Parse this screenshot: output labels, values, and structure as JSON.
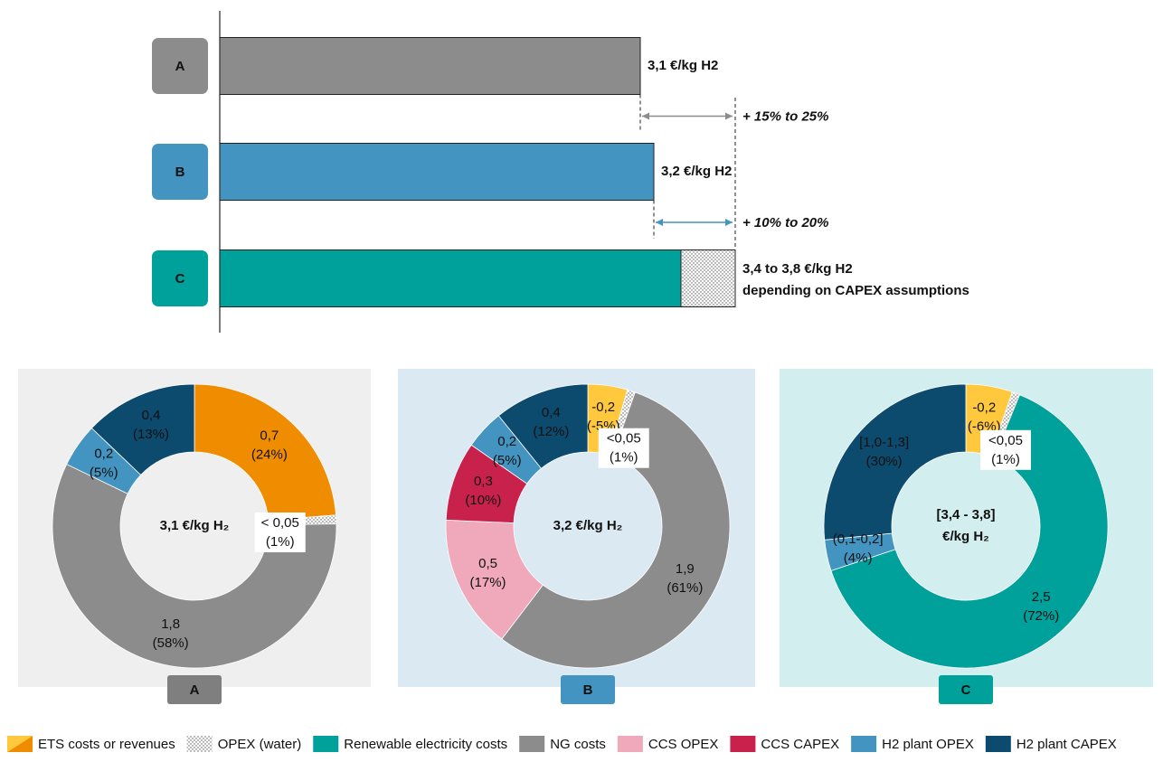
{
  "chart_data": [
    {
      "type": "bar",
      "categories": [
        "A",
        "B",
        "C"
      ],
      "values": [
        3.1,
        3.2,
        3.4
      ],
      "upper": [
        null,
        null,
        3.8
      ],
      "value_labels": [
        "3,1 €/kg H2",
        "3,2 €/kg H2",
        "3,4 to 3,8 €/kg H2"
      ],
      "value_notes": [
        null,
        null,
        "depending on CAPEX assumptions"
      ],
      "colors": [
        "#8c8c8c",
        "#4394c0",
        "#00a19a"
      ],
      "xlim": [
        0,
        4
      ],
      "annotations": [
        {
          "text": "+ 15% to 25%",
          "color": "#8c8c8c"
        },
        {
          "text": "+ 10% to 20%",
          "color": "#4394c0"
        }
      ]
    },
    {
      "type": "donut",
      "label": "A",
      "center_label": [
        "3,1 €/kg H₂"
      ],
      "background": "#efefef",
      "badge_color": "#7f7f7f",
      "values": [
        24,
        1,
        58,
        5,
        13
      ],
      "amounts": [
        "0,7",
        "< 0,05",
        "1,8",
        "0,2",
        "0,4"
      ],
      "value_labels": [
        "(24%)",
        "(1%)",
        "(58%)",
        "(5%)",
        "(13%)"
      ],
      "colors": [
        "#f08c00",
        "dots",
        "#8c8c8c",
        "#4394c0",
        "#0c4a6e"
      ]
    },
    {
      "type": "donut",
      "label": "B",
      "center_label": [
        "3,2 €/kg H₂"
      ],
      "background": "#dbe9f3",
      "badge_color": "#4394c0",
      "values": [
        -5,
        1,
        61,
        17,
        10,
        5,
        12
      ],
      "amounts": [
        "-0,2",
        "<0,05",
        "1,9",
        "0,5",
        "0,3",
        "0,2",
        "0,4"
      ],
      "value_labels": [
        "(-5%)",
        "(1%)",
        "(61%)",
        "(17%)",
        "(10%)",
        "(5%)",
        "(12%)"
      ],
      "colors": [
        "#ffc83d",
        "dots",
        "#8c8c8c",
        "#f0a8bb",
        "#c8224c",
        "#4394c0",
        "#0c4a6e"
      ]
    },
    {
      "type": "donut",
      "label": "C",
      "center_label": [
        "[3,4 - 3,8]",
        "€/kg H₂"
      ],
      "background": "#d3eeee",
      "badge_color": "#00a19a",
      "values": [
        -6,
        1,
        72,
        4,
        30
      ],
      "amounts": [
        "-0,2",
        "<0,05",
        "2,5",
        "(0,1-0,2]",
        "[1,0-1,3]"
      ],
      "value_labels": [
        "(-6%)",
        "(1%)",
        "(72%)",
        "(4%)",
        "(30%)"
      ],
      "colors": [
        "#ffc83d",
        "dots",
        "#00a19a",
        "#4394c0",
        "#0c4a6e"
      ]
    }
  ],
  "legend": [
    {
      "name": "ETS costs or revenues",
      "color": "#f08c00",
      "color2": "#ffc83d"
    },
    {
      "name": "OPEX (water)",
      "color": "dots"
    },
    {
      "name": "Renewable electricity costs",
      "color": "#00a19a"
    },
    {
      "name": "NG costs",
      "color": "#8c8c8c"
    },
    {
      "name": "CCS OPEX",
      "color": "#f0a8bb"
    },
    {
      "name": "CCS CAPEX",
      "color": "#c8224c"
    },
    {
      "name": "H2 plant OPEX",
      "color": "#4394c0"
    },
    {
      "name": "H2 plant CAPEX",
      "color": "#0c4a6e"
    }
  ]
}
